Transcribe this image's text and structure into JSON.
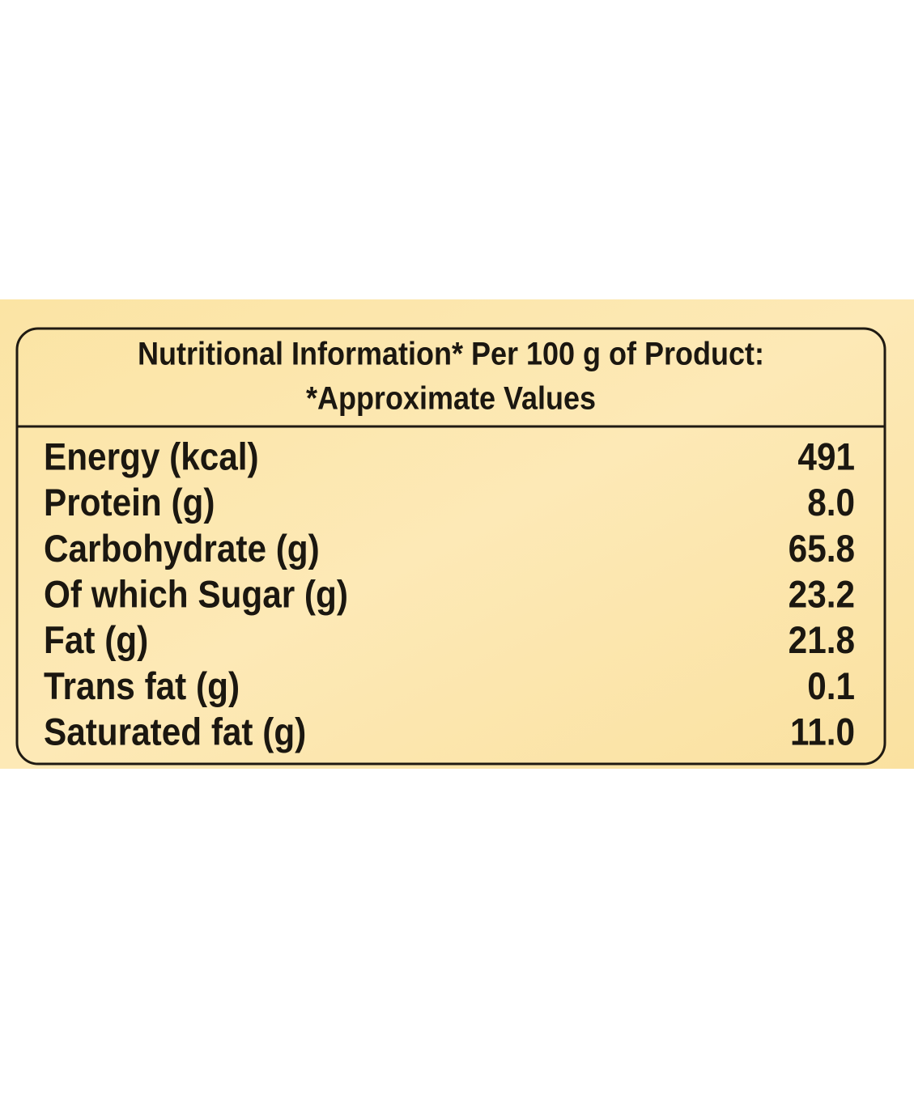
{
  "header": {
    "title": "Nutritional Information* Per 100 g of Product:",
    "subtitle": "*Approximate Values"
  },
  "table": {
    "rows": [
      [
        "Energy (kcal)",
        "491"
      ],
      [
        "Protein (g)",
        "8.0"
      ],
      [
        "Carbohydrate (g)",
        "65.8"
      ],
      [
        "Of which Sugar (g)",
        "23.2"
      ],
      [
        "Fat (g)",
        "21.8"
      ],
      [
        "Trans fat (g)",
        "0.1"
      ],
      [
        "Saturated fat (g)",
        "11.0"
      ]
    ]
  }
}
